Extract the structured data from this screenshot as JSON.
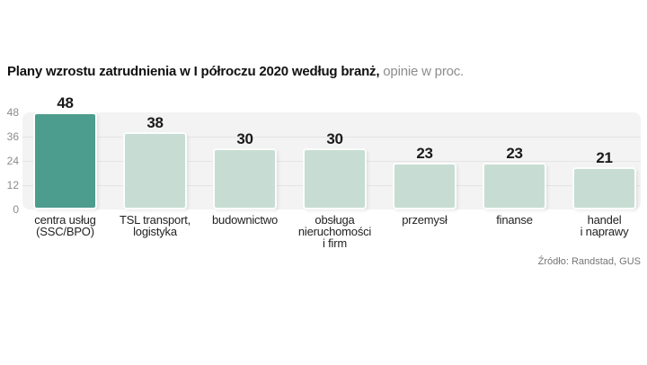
{
  "header": {
    "title_bold": "Plany wzrostu zatrudnienia w I półroczu 2020 według branż,",
    "title_light": " opinie w proc."
  },
  "chart_data": {
    "type": "bar",
    "title": "Plany wzrostu zatrudnienia w I półroczu 2020 według branż, opinie w proc.",
    "categories": [
      "centra usług\n(SSC/BPO)",
      "TSL transport,\nlogistyka",
      "budownictwo",
      "obsługa\nnieruchomości\ni firm",
      "przemysł",
      "finanse",
      "handel\ni naprawy"
    ],
    "values": [
      48,
      38,
      30,
      30,
      23,
      23,
      21
    ],
    "xlabel": "",
    "ylabel": "",
    "ylim": [
      0,
      48
    ],
    "yticks": [
      0,
      12,
      24,
      36,
      48
    ],
    "grid": true,
    "legend_position": "none",
    "highlight_index": 0,
    "highlight_color": "#4d9d8e",
    "bar_color": "#c7ddd3",
    "value_label_color": "#1a1a1a",
    "panel_color": "#f3f3f3"
  },
  "footer": {
    "source": "Źródło: Randstad, GUS"
  }
}
